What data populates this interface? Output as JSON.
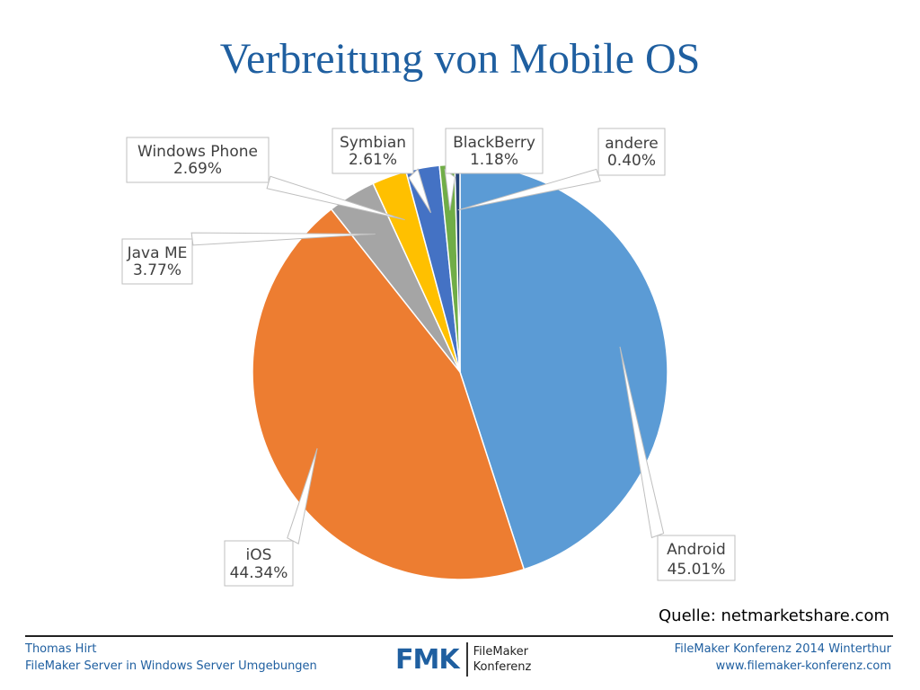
{
  "title": "Verbreitung von Mobile OS",
  "chart_data": {
    "type": "pie",
    "start_angle_deg": 0,
    "direction": "clockwise",
    "slices": [
      {
        "name": "Android",
        "value": 45.01,
        "label": "45.01%",
        "color": "#5b9bd5"
      },
      {
        "name": "iOS",
        "value": 44.34,
        "label": "44.34%",
        "color": "#ed7d31"
      },
      {
        "name": "Java ME",
        "value": 3.77,
        "label": "3.77%",
        "color": "#a5a5a5"
      },
      {
        "name": "Windows Phone",
        "value": 2.69,
        "label": "2.69%",
        "color": "#ffc000"
      },
      {
        "name": "Symbian",
        "value": 2.61,
        "label": "2.61%",
        "color": "#4472c4"
      },
      {
        "name": "BlackBerry",
        "value": 1.18,
        "label": "1.18%",
        "color": "#70ad47"
      },
      {
        "name": "andere",
        "value": 0.4,
        "label": "0.40%",
        "color": "#264478"
      }
    ]
  },
  "source": "Quelle: netmarketshare.com",
  "footer": {
    "left_line1": "Thomas Hirt",
    "left_line2": "FileMaker Server in Windows Server Umgebungen",
    "logo_mark": "FMK",
    "logo_line1": "FileMaker",
    "logo_line2": "Konferenz",
    "right_line1": "FileMaker Konferenz 2014 Winterthur",
    "right_line2": "www.filemaker-konferenz.com"
  }
}
